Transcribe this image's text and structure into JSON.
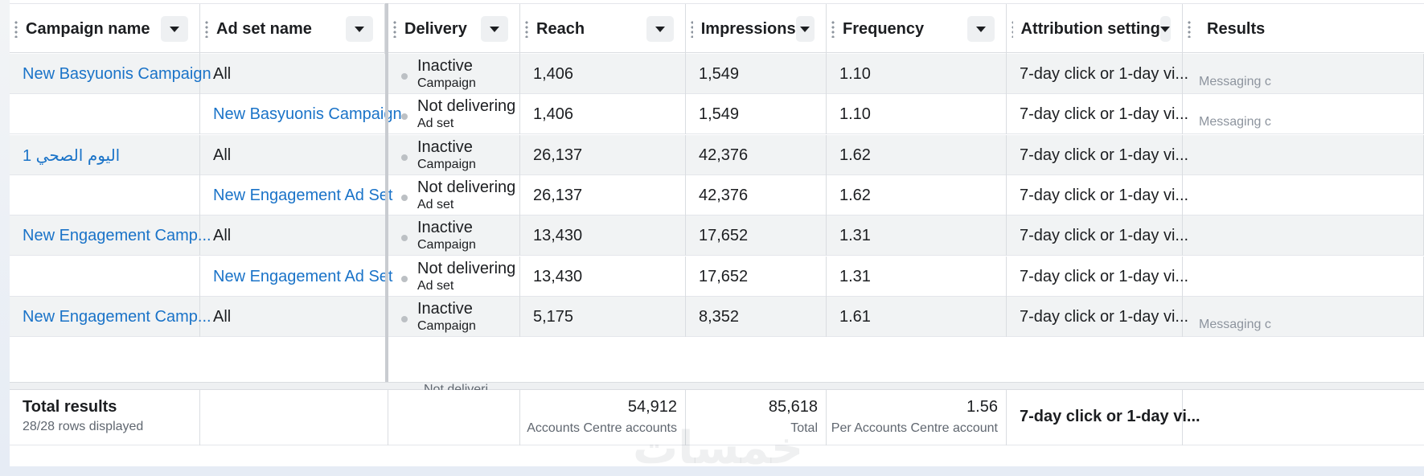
{
  "columns": [
    {
      "id": "campaign",
      "label": "Campaign name"
    },
    {
      "id": "adset",
      "label": "Ad set name"
    },
    {
      "id": "delivery",
      "label": "Delivery"
    },
    {
      "id": "reach",
      "label": "Reach"
    },
    {
      "id": "impressions",
      "label": "Impressions"
    },
    {
      "id": "frequency",
      "label": "Frequency"
    },
    {
      "id": "attribution",
      "label": "Attribution setting"
    },
    {
      "id": "results",
      "label": "Results"
    }
  ],
  "rows": [
    {
      "campaign": "New Basyuonis Campaign",
      "adset": "All",
      "adset_link": false,
      "delivery": "Inactive",
      "delivery_sub": "Campaign",
      "reach": "1,406",
      "impressions": "1,549",
      "frequency": "1.10",
      "attribution": "7-day click or 1-day vi...",
      "results": "Messaging c"
    },
    {
      "campaign": "",
      "adset": "New Basyuonis Campaign",
      "adset_link": true,
      "delivery": "Not delivering",
      "delivery_sub": "Ad set",
      "reach": "1,406",
      "impressions": "1,549",
      "frequency": "1.10",
      "attribution": "7-day click or 1-day vi...",
      "results": "Messaging c"
    },
    {
      "campaign": "اليوم الصحي 1",
      "adset": "All",
      "adset_link": false,
      "delivery": "Inactive",
      "delivery_sub": "Campaign",
      "reach": "26,137",
      "impressions": "42,376",
      "frequency": "1.62",
      "attribution": "7-day click or 1-day vi...",
      "results": ""
    },
    {
      "campaign": "",
      "adset": "New Engagement Ad Set",
      "adset_link": true,
      "delivery": "Not delivering",
      "delivery_sub": "Ad set",
      "reach": "26,137",
      "impressions": "42,376",
      "frequency": "1.62",
      "attribution": "7-day click or 1-day vi...",
      "results": ""
    },
    {
      "campaign": "New Engagement Camp...",
      "adset": "All",
      "adset_link": false,
      "delivery": "Inactive",
      "delivery_sub": "Campaign",
      "reach": "13,430",
      "impressions": "17,652",
      "frequency": "1.31",
      "attribution": "7-day click or 1-day vi...",
      "results": ""
    },
    {
      "campaign": "",
      "adset": "New Engagement Ad Set",
      "adset_link": true,
      "delivery": "Not delivering",
      "delivery_sub": "Ad set",
      "reach": "13,430",
      "impressions": "17,652",
      "frequency": "1.31",
      "attribution": "7-day click or 1-day vi...",
      "results": ""
    },
    {
      "campaign": "New Engagement Camp...",
      "adset": "All",
      "adset_link": false,
      "delivery": "Inactive",
      "delivery_sub": "Campaign",
      "reach": "5,175",
      "impressions": "8,352",
      "frequency": "1.61",
      "attribution": "7-day click or 1-day vi...",
      "results": "Messaging c"
    }
  ],
  "partial_row": {
    "delivery": "Not deliveri"
  },
  "totals": {
    "title": "Total results",
    "rows_displayed": "28/28 rows displayed",
    "reach": "54,912",
    "reach_caption": "Accounts Centre accounts",
    "impressions": "85,618",
    "impressions_caption": "Total",
    "frequency": "1.56",
    "frequency_caption": "Per Accounts Centre account",
    "attribution": "7-day click or 1-day vi..."
  },
  "watermark": "خمسات",
  "icons": {
    "sort": "chevron-down-icon",
    "drag": "drag-handle-icon",
    "status": "status-dot-icon"
  }
}
